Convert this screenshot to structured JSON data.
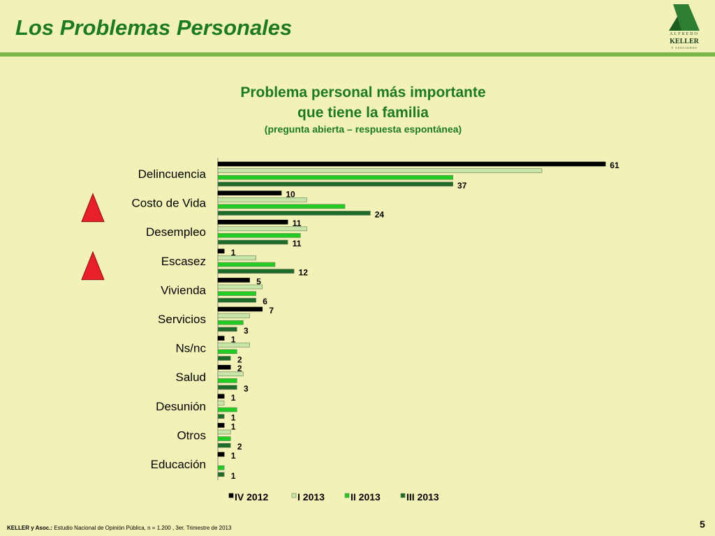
{
  "header": {
    "title": "Los Problemas Personales",
    "logo_top": "ALFREDO",
    "logo_main": "KELLER",
    "logo_sub": "Y ASOCIADOS"
  },
  "chart_data": {
    "type": "bar",
    "orientation": "horizontal",
    "title_line1": "Problema personal más importante",
    "title_line2": "que tiene la familia",
    "subtitle": "(pregunta abierta – respuesta espontánea)",
    "categories": [
      "Delincuencia",
      "Costo de Vida",
      "Desempleo",
      "Escasez",
      "Vivienda",
      "Servicios",
      "Ns/nc",
      "Salud",
      "Desunión",
      "Otros",
      "Educación"
    ],
    "series": [
      {
        "name": "IV 2012",
        "color": "#000000",
        "values": [
          61,
          10,
          11,
          1,
          5,
          7,
          1,
          2,
          1,
          1,
          1
        ]
      },
      {
        "name": "I 2013",
        "color": "#c8e6a8",
        "values": [
          51,
          14,
          14,
          6,
          7,
          5,
          5,
          4,
          1,
          2,
          0
        ]
      },
      {
        "name": "II 2013",
        "color": "#22cc22",
        "values": [
          37,
          20,
          13,
          9,
          6,
          4,
          3,
          3,
          3,
          2,
          1
        ]
      },
      {
        "name": "III 2013",
        "color": "#1f6b2a",
        "values": [
          37,
          24,
          11,
          12,
          6,
          3,
          2,
          3,
          1,
          2,
          1
        ]
      }
    ],
    "labeled_series": [
      0,
      3
    ],
    "highlighted_categories": [
      1,
      3
    ],
    "highlight_color": "#e8202a",
    "xlim": [
      0,
      65
    ],
    "legend_position": "bottom"
  },
  "footer": {
    "source_bold": "KELLER y Asoc.:",
    "source_text": " Estudio Nacional de Opinión Pública, n = 1.200 , 3er. Trimestre de 2013",
    "page": "5"
  }
}
